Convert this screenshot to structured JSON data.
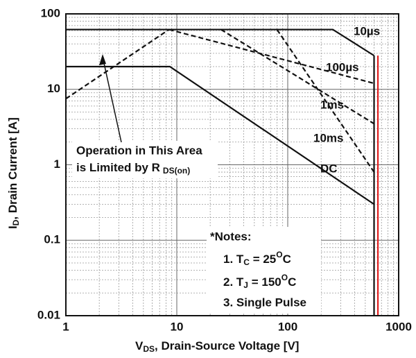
{
  "chart_data": {
    "type": "line",
    "xlog": true,
    "ylog": true,
    "grid": true,
    "xlim": [
      1,
      1000
    ],
    "ylim": [
      0.01,
      100
    ],
    "xticks": [
      1,
      10,
      100,
      1000
    ],
    "yticks": [
      0.01,
      0.1,
      1,
      10,
      100
    ],
    "xlabel": {
      "main": "V",
      "sub": "DS",
      "rest": ", Drain-Source Voltage [V]"
    },
    "ylabel": {
      "main": "I",
      "sub": "D",
      "rest": ", Drain Current [A]"
    },
    "series": [
      {
        "color": "#111111",
        "dash": true,
        "x": [
          1,
          8.5
        ],
        "values": [
          7.5,
          62
        ]
      },
      {
        "name": "10µs",
        "color": "#111111",
        "dash": false,
        "x": [
          1,
          255,
          600
        ],
        "values": [
          62,
          62,
          28
        ]
      },
      {
        "name": "100µs",
        "color": "#111111",
        "dash": true,
        "x": [
          8.5,
          600
        ],
        "values": [
          62,
          12
        ]
      },
      {
        "name": "1ms",
        "color": "#111111",
        "dash": true,
        "x": [
          25,
          600
        ],
        "values": [
          62,
          3.5
        ]
      },
      {
        "name": "10ms",
        "color": "#111111",
        "dash": true,
        "x": [
          80,
          600
        ],
        "values": [
          62,
          0.8
        ]
      },
      {
        "name": "DC",
        "color": "#111111",
        "dash": false,
        "x": [
          1,
          8.66,
          600
        ],
        "values": [
          20,
          20,
          0.3
        ]
      },
      {
        "color": "#111111",
        "dash": false,
        "x": [
          600,
          600
        ],
        "values": [
          28,
          0.01
        ]
      },
      {
        "color": "#e02020",
        "dash": false,
        "x": [
          650,
          650
        ],
        "values": [
          28,
          0.01
        ]
      }
    ],
    "annotation": {
      "line1": "Operation in This Area",
      "line2": "is Limited by R",
      "sub": "DS(on)"
    },
    "notes": {
      "title": "*Notes:",
      "note1": {
        "a": "1. T",
        "sub": "C",
        "b": " = 25",
        "sup": "O",
        "c": "C"
      },
      "note2": {
        "a": "2. T",
        "sub": "J",
        "b": " = 150",
        "sup": "O",
        "c": "C"
      },
      "note3": "3. Single Pulse"
    }
  }
}
